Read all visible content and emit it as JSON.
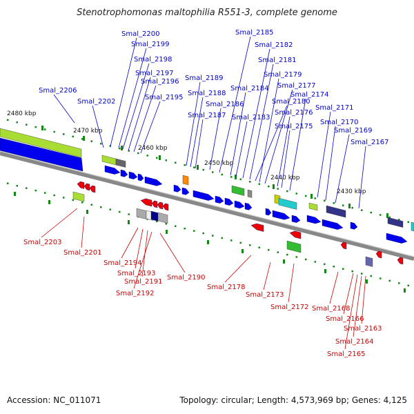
{
  "title": "Stenotrophomonas maltophilia R551-3, complete genome",
  "footer": {
    "accession": "Accession: NC_011071",
    "summary": "Topology: circular; Length: 4,573,969 bp; Genes: 4,125"
  },
  "colors": {
    "forward_label": "#0000cc",
    "reverse_label": "#cc0000",
    "forward_gene": "#0000ee",
    "reverse_gene": "#ee0000",
    "backbone": "#888888",
    "tick": "#118811",
    "cog_lime": "#aadd33",
    "cog_green": "#33bb33",
    "cog_cyan": "#22cccc",
    "cog_navy": "#333388",
    "cog_gray": "#aaaaaa"
  },
  "scale_ticks": [
    "2480 kbp",
    "2470 kbp",
    "2460 kbp",
    "2450 kbp",
    "2440 kbp",
    "2430 kbp"
  ],
  "forward_labels": [
    "Smal_2206",
    "Smal_2202",
    "Smal_2200",
    "Smal_2199",
    "Smal_2198",
    "Smal_2197",
    "Smal_2196",
    "Smal_2195",
    "Smal_2189",
    "Smal_2188",
    "Smal_2187",
    "Smal_2186",
    "Smal_2185",
    "Smal_2184",
    "Smal_2183",
    "Smal_2182",
    "Smal_2181",
    "Smal_2180",
    "Smal_2179",
    "Smal_2177",
    "Smal_2176",
    "Smal_2175",
    "Smal_2174",
    "Smal_2171",
    "Smal_2170",
    "Smal_2169",
    "Smal_2167"
  ],
  "reverse_labels": [
    "Smal_2203",
    "Smal_2201",
    "Smal_2194",
    "Smal_2193",
    "Smal_2191",
    "Smal_2192",
    "Smal_2190",
    "Smal_2178",
    "Smal_2173",
    "Smal_2172",
    "Smal_2168",
    "Smal_2166",
    "Smal_2163",
    "Smal_2164",
    "Smal_2165"
  ]
}
